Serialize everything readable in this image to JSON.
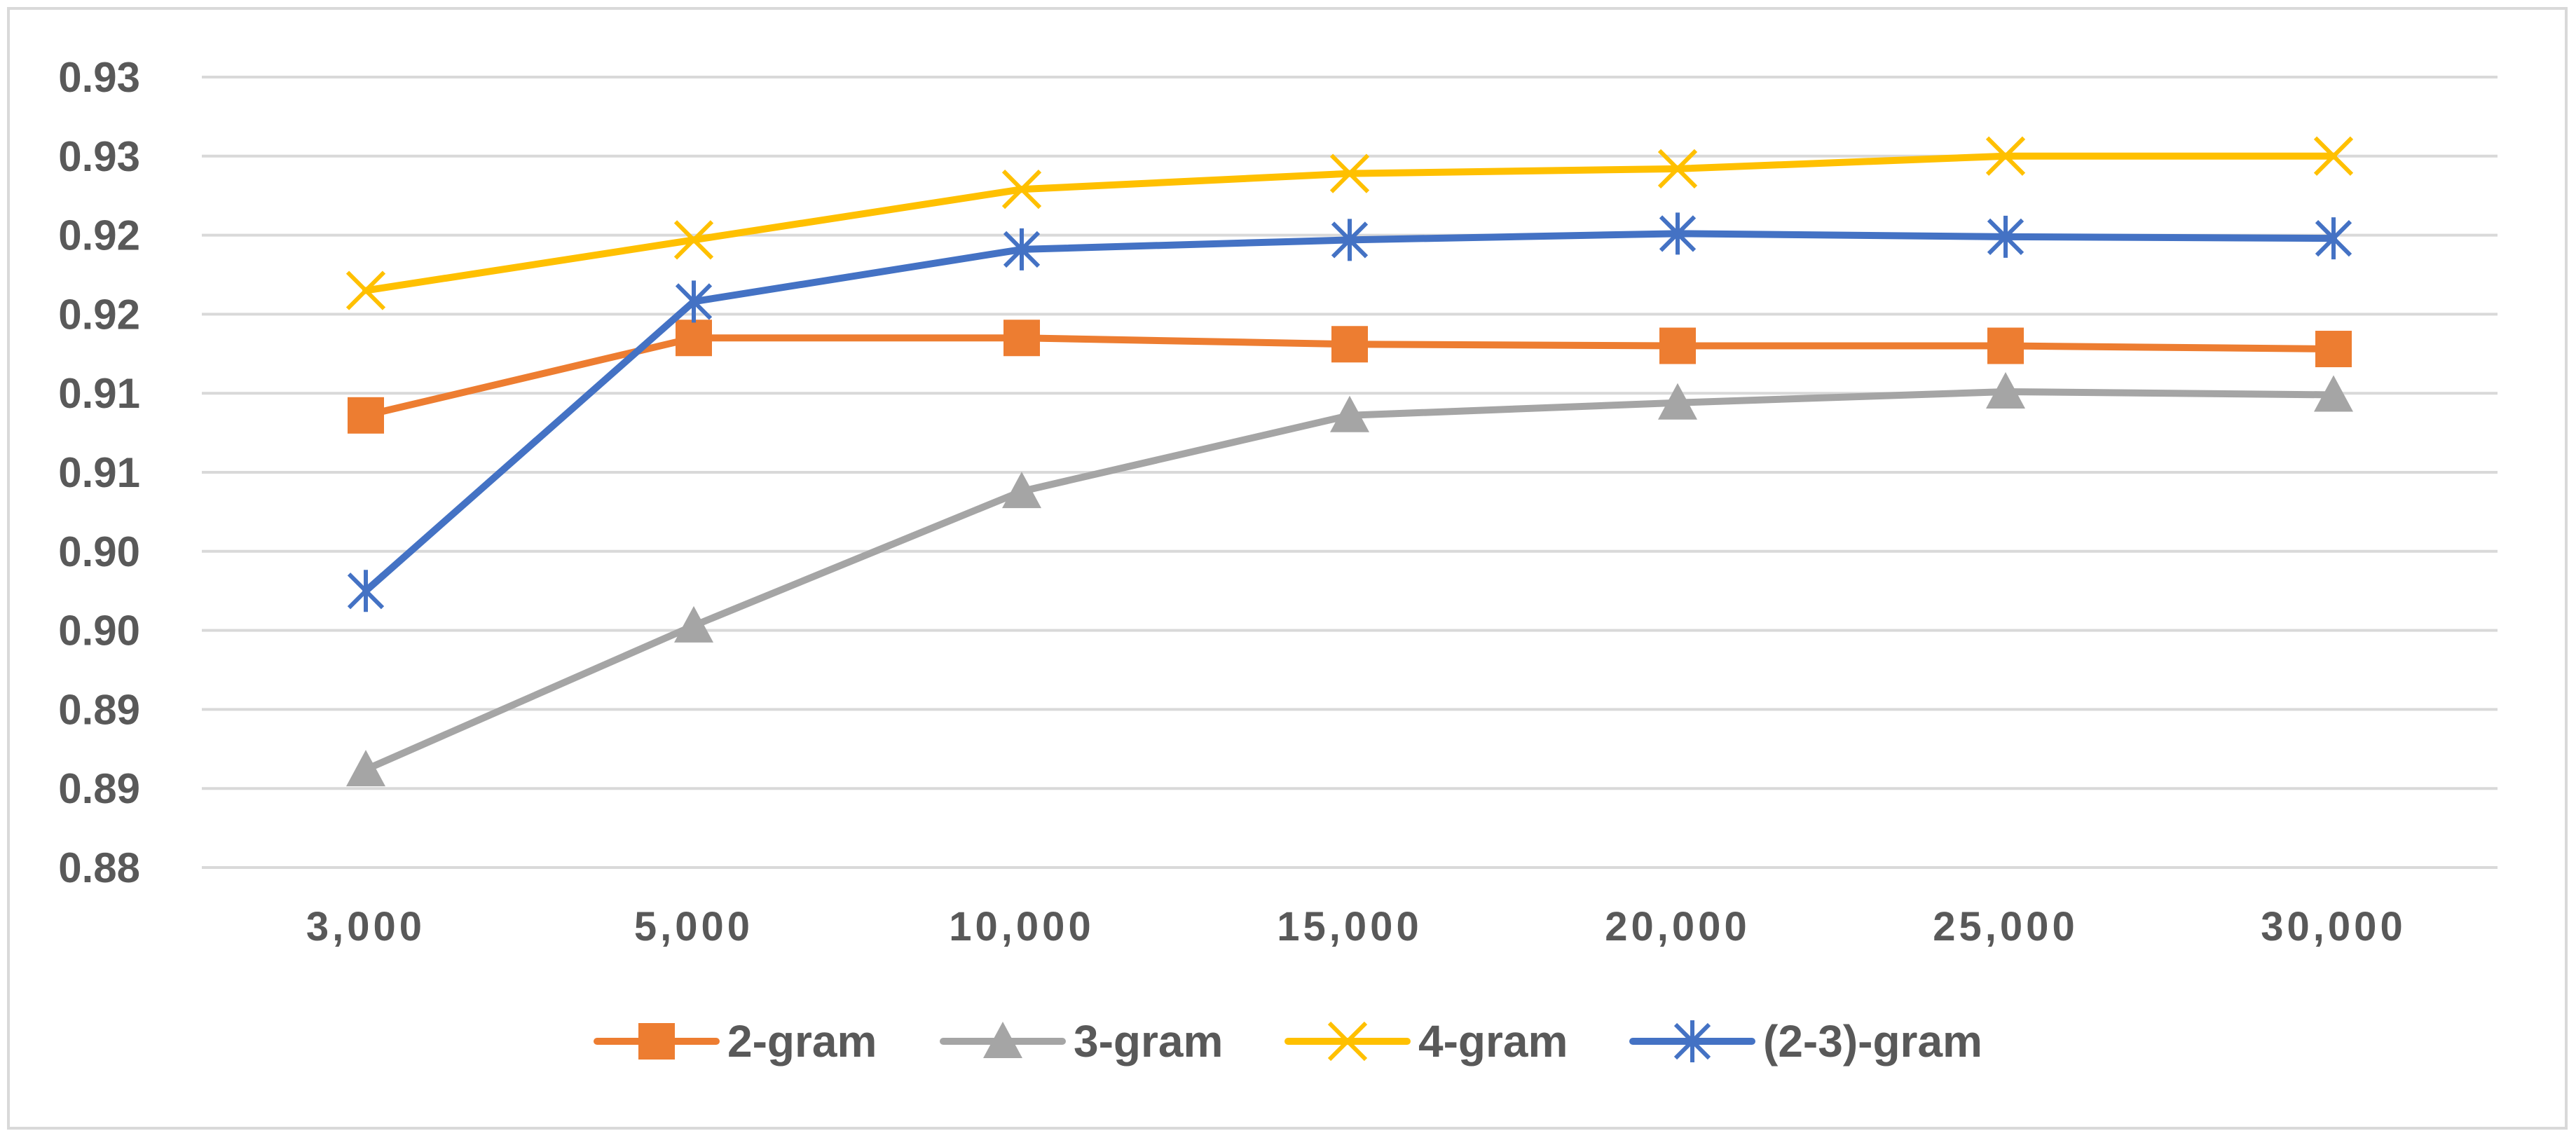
{
  "chart_data": {
    "type": "line",
    "title": "",
    "xlabel": "",
    "ylabel": "",
    "categories": [
      "3,000",
      "5,000",
      "10,000",
      "15,000",
      "20,000",
      "25,000",
      "30,000"
    ],
    "y_tick_labels": [
      "0.88",
      "0.89",
      "0.89",
      "0.90",
      "0.90",
      "0.91",
      "0.91",
      "0.92",
      "0.92",
      "0.93",
      "0.93"
    ],
    "ylim": [
      0.8825,
      0.9325
    ],
    "y_tick_values": [
      0.8825,
      0.8875,
      0.8925,
      0.8975,
      0.9025,
      0.9075,
      0.9125,
      0.9175,
      0.9225,
      0.9275,
      0.9325
    ],
    "grid": true,
    "legend_position": "bottom",
    "series": [
      {
        "name": "2-gram",
        "color": "#ed7d31",
        "marker": "square",
        "values": [
          0.9111,
          0.916,
          0.916,
          0.9156,
          0.9155,
          0.9155,
          0.9153
        ]
      },
      {
        "name": "3-gram",
        "color": "#a5a5a5",
        "marker": "triangle",
        "values": [
          0.8887,
          0.8978,
          0.9063,
          0.9111,
          0.9119,
          0.9126,
          0.9124
        ]
      },
      {
        "name": "4-gram",
        "color": "#ffc000",
        "marker": "x",
        "values": [
          0.919,
          0.9222,
          0.9254,
          0.9264,
          0.9267,
          0.9275,
          0.9275
        ]
      },
      {
        "name": "(2-3)-gram",
        "color": "#4472c4",
        "marker": "asterisk",
        "values": [
          0.9,
          0.9183,
          0.9216,
          0.9222,
          0.9226,
          0.9224,
          0.9223
        ]
      }
    ]
  }
}
